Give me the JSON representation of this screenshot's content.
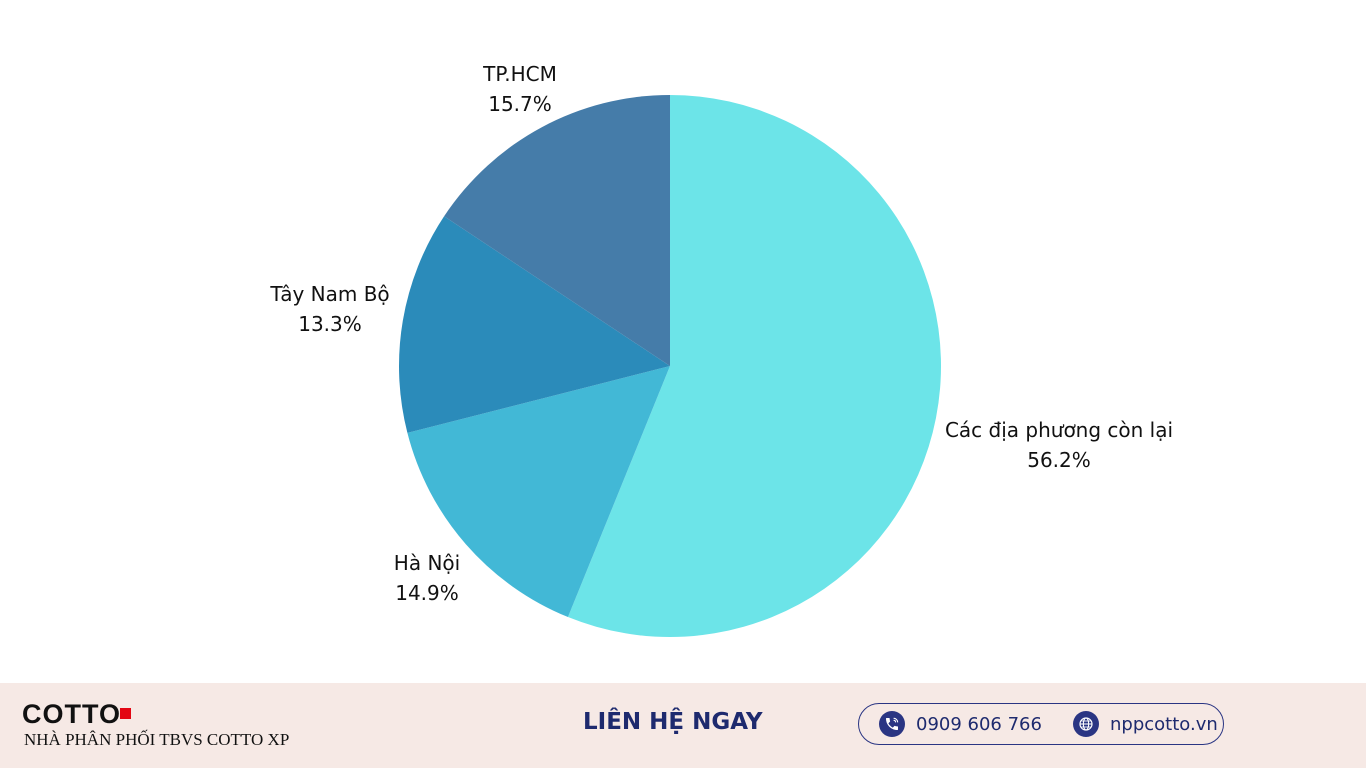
{
  "chart_data": {
    "type": "pie",
    "title": "",
    "slices": [
      {
        "label": "Các địa phương còn lại",
        "value": 56.2,
        "value_label": "56.2%",
        "color": "#6ce4e8"
      },
      {
        "label": "Hà Nội",
        "value": 14.9,
        "value_label": "14.9%",
        "color": "#42b8d6"
      },
      {
        "label": "Tây Nam Bộ",
        "value": 13.3,
        "value_label": "13.3%",
        "color": "#2b8bba"
      },
      {
        "label": "TP.HCM",
        "value": 15.7,
        "value_label": "15.7%",
        "color": "#457ca9"
      }
    ],
    "start_angle_deg": 0,
    "direction": "clockwise"
  },
  "footer": {
    "brand": "COTTO",
    "brand_accent_color": "#e30613",
    "tagline": "NHÀ PHÂN PHỐI TBVS COTTO XP",
    "cta": "LIÊN HỆ NGAY",
    "phone": "0909 606 766",
    "phone_icon": "phone-icon",
    "website": "nppcotto.vn",
    "website_icon": "globe-icon",
    "accent_color": "#1e2a6e",
    "background_color": "#f6e9e5"
  }
}
